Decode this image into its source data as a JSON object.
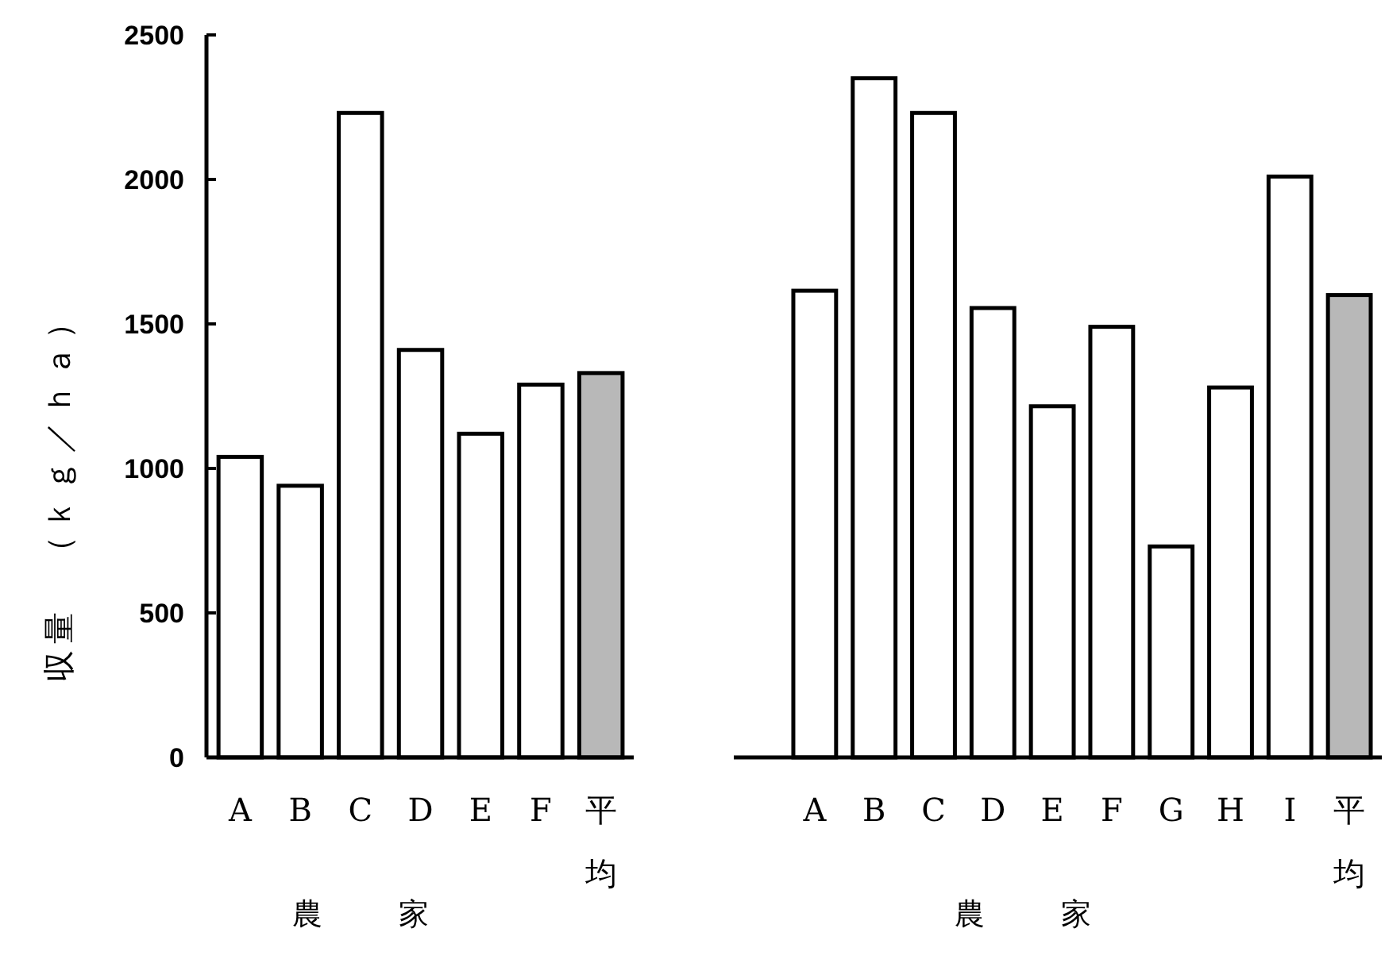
{
  "chart_data": [
    {
      "type": "bar",
      "ylabel": "収量　（ｋｇ／ｈａ）",
      "xlabel": "農家",
      "categories": [
        "A",
        "B",
        "C",
        "D",
        "E",
        "F",
        "平均"
      ],
      "values": [
        1040,
        940,
        2230,
        1410,
        1120,
        1290,
        1330
      ],
      "colors": [
        "#ffffff",
        "#ffffff",
        "#ffffff",
        "#ffffff",
        "#ffffff",
        "#ffffff",
        "#b8b8b8"
      ],
      "ylim": [
        0,
        2500
      ],
      "yticks": [
        0,
        500,
        1000,
        1500,
        2000,
        2500
      ]
    },
    {
      "type": "bar",
      "xlabel": "農家",
      "categories": [
        "A",
        "B",
        "C",
        "D",
        "E",
        "F",
        "G",
        "H",
        "I",
        "平均"
      ],
      "values": [
        1615,
        2350,
        2230,
        1555,
        1215,
        1490,
        730,
        1280,
        2010,
        1600
      ],
      "colors": [
        "#ffffff",
        "#ffffff",
        "#ffffff",
        "#ffffff",
        "#ffffff",
        "#ffffff",
        "#ffffff",
        "#ffffff",
        "#ffffff",
        "#b8b8b8"
      ],
      "ylim": [
        0,
        2500
      ],
      "tick_labels": "x"
    }
  ]
}
